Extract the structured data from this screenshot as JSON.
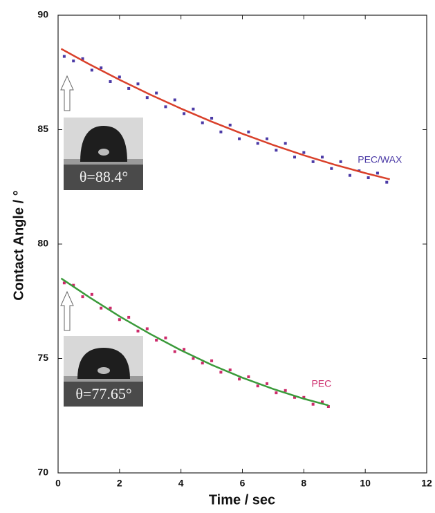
{
  "chart_data": {
    "type": "scatter",
    "x_label": "Time / sec",
    "y_label": "Contact Angle / °",
    "xlim": [
      0,
      12
    ],
    "xticks": [
      0,
      2,
      4,
      6,
      8,
      10,
      12
    ],
    "ylim": [
      70,
      90
    ],
    "yticks": [
      70,
      75,
      80,
      85,
      90
    ],
    "series": [
      {
        "name": "PEC/WAX",
        "color": "#4b3aa6",
        "x": [
          0.2,
          0.5,
          0.8,
          1.1,
          1.4,
          1.7,
          2.0,
          2.3,
          2.6,
          2.9,
          3.2,
          3.5,
          3.8,
          4.1,
          4.4,
          4.7,
          5.0,
          5.3,
          5.6,
          5.9,
          6.2,
          6.5,
          6.8,
          7.1,
          7.4,
          7.7,
          8.0,
          8.3,
          8.6,
          8.9,
          9.2,
          9.5,
          9.8,
          10.1,
          10.4,
          10.7
        ],
        "values": [
          88.2,
          88.0,
          88.1,
          87.6,
          87.7,
          87.1,
          87.3,
          86.8,
          87.0,
          86.4,
          86.6,
          86.0,
          86.3,
          85.7,
          85.9,
          85.3,
          85.5,
          84.9,
          85.2,
          84.6,
          84.9,
          84.4,
          84.6,
          84.1,
          84.4,
          83.8,
          84.0,
          83.6,
          83.8,
          83.3,
          83.6,
          83.0,
          83.2,
          82.9,
          83.1,
          82.7
        ]
      },
      {
        "name": "PEC",
        "color": "#cc2a6a",
        "x": [
          0.2,
          0.5,
          0.8,
          1.1,
          1.4,
          1.7,
          2.0,
          2.3,
          2.6,
          2.9,
          3.2,
          3.5,
          3.8,
          4.1,
          4.4,
          4.7,
          5.0,
          5.3,
          5.6,
          5.9,
          6.2,
          6.5,
          6.8,
          7.1,
          7.4,
          7.7,
          8.0,
          8.3,
          8.6,
          8.8
        ],
        "values": [
          78.3,
          78.2,
          77.7,
          77.8,
          77.2,
          77.2,
          76.7,
          76.8,
          76.2,
          76.3,
          75.8,
          75.9,
          75.3,
          75.4,
          75.0,
          74.8,
          74.9,
          74.4,
          74.5,
          74.1,
          74.2,
          73.8,
          73.9,
          73.5,
          73.6,
          73.3,
          73.3,
          73.0,
          73.1,
          72.9
        ]
      },
      {
        "type": "line",
        "color": "#d9402a",
        "x": [
          0.1,
          1,
          2,
          3,
          4,
          5,
          6,
          7,
          8,
          9,
          10,
          10.8
        ],
        "values": [
          88.53,
          87.87,
          87.18,
          86.53,
          85.92,
          85.35,
          84.82,
          84.33,
          83.88,
          83.47,
          83.1,
          82.83
        ]
      },
      {
        "type": "line",
        "color": "#3a9a3a",
        "x": [
          0.1,
          1,
          2,
          3,
          4,
          5,
          6,
          7,
          8,
          8.8
        ],
        "values": [
          78.5,
          77.69,
          76.84,
          76.07,
          75.36,
          74.72,
          74.16,
          73.67,
          73.24,
          72.95
        ]
      }
    ],
    "annotations": [
      "θ=88.4°",
      "θ=77.65°"
    ]
  }
}
